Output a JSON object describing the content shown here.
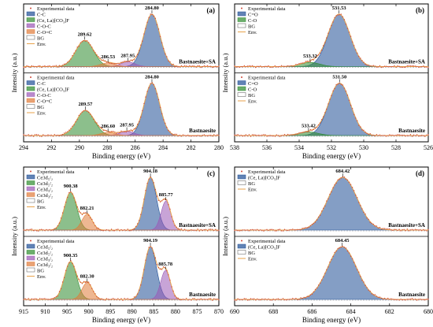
{
  "chart_data": [
    {
      "id": "a",
      "type": "line",
      "panel_label": "(a)",
      "xlabel": "Binding energy (eV)",
      "ylabel": "Intensity (a.u.)",
      "xlim": [
        294,
        280
      ],
      "x_ticks": [
        "294",
        "292",
        "290",
        "288",
        "286",
        "284",
        "282",
        "280"
      ],
      "legend_placement": "top-left",
      "subplots": [
        {
          "sample_label": "Bastnaesite+SA",
          "legend": [
            "Experimental data",
            "C-C",
            "(Ce, La)[CO₃]F",
            "C-O-C",
            "C-O=C",
            "BG",
            "Env."
          ],
          "peaks": [
            {
              "name": "C-C",
              "center": 284.8,
              "height": 1.0,
              "fwhm": 1.35,
              "color": "#1f4e96"
            },
            {
              "name": "(Ce, La)[CO₃]F",
              "center": 289.62,
              "height": 0.5,
              "fwhm": 1.5,
              "color": "#2e8b2e"
            },
            {
              "name": "C-O-C",
              "center": 286.53,
              "height": 0.09,
              "fwhm": 1.2,
              "color": "#9b59b6"
            },
            {
              "name": "C-O=C",
              "center": 287.95,
              "height": 0.07,
              "fwhm": 1.2,
              "color": "#e07b39"
            }
          ],
          "annotations": [
            "284.80",
            "289.62",
            "287.95",
            "286.53"
          ]
        },
        {
          "sample_label": "Bastnaesite",
          "legend": [
            "Experimental data",
            "C-C",
            "(Ce, La)[CO₃]F",
            "C-O-C",
            "C-O=C",
            "BG",
            "Env."
          ],
          "peaks": [
            {
              "name": "C-C",
              "center": 284.8,
              "height": 1.0,
              "fwhm": 1.3,
              "color": "#1f4e96"
            },
            {
              "name": "(Ce, La)[CO₃]F",
              "center": 289.57,
              "height": 0.48,
              "fwhm": 1.5,
              "color": "#2e8b2e"
            },
            {
              "name": "C-O-C",
              "center": 286.6,
              "height": 0.08,
              "fwhm": 1.2,
              "color": "#9b59b6"
            },
            {
              "name": "C-O=C",
              "center": 287.95,
              "height": 0.06,
              "fwhm": 1.2,
              "color": "#e07b39"
            }
          ],
          "annotations": [
            "284.80",
            "289.57",
            "287.95",
            "286.60"
          ]
        }
      ]
    },
    {
      "id": "b",
      "type": "line",
      "panel_label": "(b)",
      "xlabel": "Binding energy (eV)",
      "ylabel": "Intensity (a.u.)",
      "xlim": [
        538,
        526
      ],
      "x_ticks": [
        "538",
        "536",
        "534",
        "532",
        "530",
        "528",
        "526"
      ],
      "legend_placement": "top-left",
      "subplots": [
        {
          "sample_label": "Bastnaesite+SA",
          "legend": [
            "Experimental data",
            "C=O",
            "C-O",
            "BG",
            "Env."
          ],
          "peaks": [
            {
              "name": "C=O",
              "center": 531.53,
              "height": 1.0,
              "fwhm": 1.6,
              "color": "#1f4e96"
            },
            {
              "name": "C-O",
              "center": 533.32,
              "height": 0.08,
              "fwhm": 1.4,
              "color": "#2e8b2e"
            }
          ],
          "annotations": [
            "531.53",
            "533.32"
          ]
        },
        {
          "sample_label": "Bastnaesite",
          "legend": [
            "Experimental data",
            "C=O",
            "C-O",
            "BG",
            "Env."
          ],
          "peaks": [
            {
              "name": "C=O",
              "center": 531.5,
              "height": 1.0,
              "fwhm": 1.6,
              "color": "#1f4e96"
            },
            {
              "name": "C-O",
              "center": 533.42,
              "height": 0.07,
              "fwhm": 1.4,
              "color": "#2e8b2e"
            }
          ],
          "annotations": [
            "531.50",
            "533.42"
          ]
        }
      ]
    },
    {
      "id": "c",
      "type": "line",
      "panel_label": "(c)",
      "xlabel": "Binding energy (eV)",
      "ylabel": "Intensity (a.u.)",
      "xlim": [
        915,
        870
      ],
      "x_ticks": [
        "915",
        "910",
        "905",
        "900",
        "895",
        "890",
        "885",
        "880",
        "875",
        "870"
      ],
      "legend_placement": "top-left",
      "subplots": [
        {
          "sample_label": "Bastnaesite+SA",
          "legend": [
            "Experimental data",
            "Ce3d₅/₂",
            "Ce3d₅/₂",
            "Ce3d₃/₂",
            "Ce3d₃/₂",
            "BG",
            "Env."
          ],
          "peaks": [
            {
              "name": "Ce3d₃/₂",
              "center": 885.77,
              "height": 1.0,
              "fwhm": 3.3,
              "color": "#1f4e96"
            },
            {
              "name": "Ce3d₅/₂",
              "center": 904.18,
              "height": 0.72,
              "fwhm": 3.3,
              "color": "#2e8b2e"
            },
            {
              "name": "Ce3d₃/₂",
              "center": 882.21,
              "height": 0.55,
              "fwhm": 2.6,
              "color": "#9b59b6"
            },
            {
              "name": "Ce3d₅/₂",
              "center": 900.38,
              "height": 0.3,
              "fwhm": 2.8,
              "color": "#e07b39"
            }
          ],
          "annotations": [
            "904.18",
            "900.38",
            "885.77",
            "882.21"
          ]
        },
        {
          "sample_label": "Bastnaesite",
          "legend": [
            "Experimental data",
            "Ce3d₅/₂",
            "Ce3d₅/₂",
            "Ce3d₃/₂",
            "Ce3d₃/₂",
            "BG",
            "Env."
          ],
          "peaks": [
            {
              "name": "Ce3d₃/₂",
              "center": 885.78,
              "height": 1.0,
              "fwhm": 3.3,
              "color": "#1f4e96"
            },
            {
              "name": "Ce3d₅/₂",
              "center": 904.19,
              "height": 0.72,
              "fwhm": 3.3,
              "color": "#2e8b2e"
            },
            {
              "name": "Ce3d₃/₂",
              "center": 882.3,
              "height": 0.55,
              "fwhm": 2.6,
              "color": "#9b59b6"
            },
            {
              "name": "Ce3d₅/₂",
              "center": 900.35,
              "height": 0.32,
              "fwhm": 2.8,
              "color": "#e07b39"
            }
          ],
          "annotations": [
            "904.19",
            "900.35",
            "885.78",
            "882.30"
          ]
        }
      ]
    },
    {
      "id": "d",
      "type": "line",
      "panel_label": "(d)",
      "xlabel": "Binding energy (eV)",
      "ylabel": "Intensity (a.u.)",
      "xlim": [
        690,
        680
      ],
      "x_ticks": [
        "690",
        "688",
        "686",
        "684",
        "682",
        "680"
      ],
      "legend_placement": "top-left",
      "subplots": [
        {
          "sample_label": "Bastnaesite+SA",
          "legend": [
            "Experimental data",
            "(Ce, La)[CO₃]F",
            "BG",
            "Env."
          ],
          "peaks": [
            {
              "name": "(Ce, La)[CO₃]F",
              "center": 684.42,
              "height": 1.0,
              "fwhm": 1.75,
              "color": "#1f4e96"
            }
          ],
          "annotations": [
            "684.42"
          ]
        },
        {
          "sample_label": "Bastnaesite",
          "legend": [
            "Experimental data",
            "(Ce, La)[CO₃]F",
            "BG",
            "Env."
          ],
          "peaks": [
            {
              "name": "(Ce, La)[CO₃]F",
              "center": 684.45,
              "height": 1.0,
              "fwhm": 1.75,
              "color": "#1f4e96"
            }
          ],
          "annotations": [
            "684.45"
          ]
        }
      ]
    }
  ],
  "colors": {
    "experimental": "#d04a3a",
    "envelope": "#e8a24a",
    "background": "#888888",
    "frame": "#000000"
  }
}
